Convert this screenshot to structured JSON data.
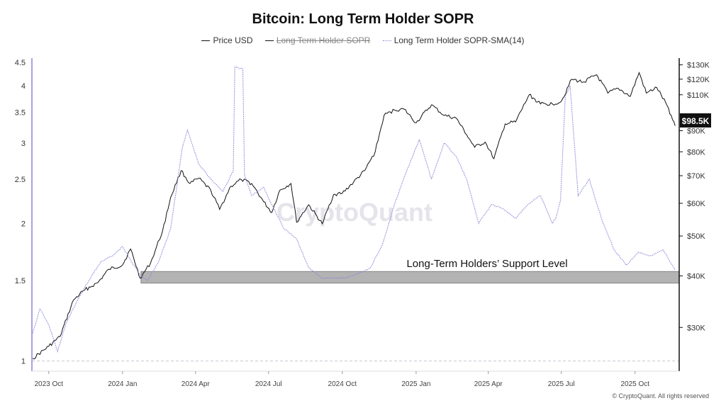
{
  "chart_data": {
    "type": "line",
    "title": "Bitcoin: Long Term Holder SOPR",
    "legend": {
      "position": "top-center",
      "entries": [
        {
          "label": "Price USD",
          "color": "#111111",
          "style": "solid",
          "hidden": false
        },
        {
          "label": "Long Term Holder SOPR",
          "color": "#111111",
          "style": "solid",
          "hidden": true
        },
        {
          "label": "Long Term Holder SOPR-SMA(14)",
          "color": "#8a86d8",
          "style": "dotted",
          "hidden": false
        }
      ]
    },
    "x_ticks": [
      "2023 Oct",
      "2024 Jan",
      "2024 Apr",
      "2024 Jul",
      "2024 Oct",
      "2025 Jan",
      "2025 Apr",
      "2025 Jul",
      "2025 Oct"
    ],
    "x_tick_dates": [
      "2023-10-01",
      "2024-01-01",
      "2024-04-01",
      "2024-07-01",
      "2024-10-01",
      "2025-01-01",
      "2025-04-01",
      "2025-07-01",
      "2025-10-01"
    ],
    "x_range": [
      "2023-09-10",
      "2025-11-25"
    ],
    "y_left": {
      "ticks": [
        1,
        1.5,
        2,
        2.5,
        3,
        3.5,
        4,
        4.5
      ],
      "range": [
        0.95,
        4.6
      ],
      "scale": "log"
    },
    "y_right": {
      "ticks": [
        30000,
        40000,
        50000,
        60000,
        70000,
        80000,
        90000,
        110000,
        120000,
        130000
      ],
      "tick_labels": [
        "$30K",
        "$40K",
        "$50K",
        "$60K",
        "$70K",
        "$80K",
        "$90K",
        "$110K",
        "$120K",
        "$130K"
      ],
      "range": [
        23500,
        135000
      ],
      "scale": "log"
    },
    "current_price_label": "$98.5K",
    "series": [
      {
        "name": "Price USD",
        "axis": "right",
        "color": "#111111",
        "x": [
          "2023-09-11",
          "2023-10-01",
          "2023-10-15",
          "2023-11-01",
          "2023-11-15",
          "2023-12-01",
          "2023-12-15",
          "2024-01-01",
          "2024-01-11",
          "2024-01-23",
          "2024-02-05",
          "2024-02-20",
          "2024-03-01",
          "2024-03-14",
          "2024-03-25",
          "2024-04-05",
          "2024-04-20",
          "2024-05-01",
          "2024-05-15",
          "2024-05-28",
          "2024-06-10",
          "2024-06-25",
          "2024-07-05",
          "2024-07-15",
          "2024-07-29",
          "2024-08-05",
          "2024-08-20",
          "2024-09-06",
          "2024-09-20",
          "2024-10-01",
          "2024-10-15",
          "2024-10-29",
          "2024-11-11",
          "2024-11-22",
          "2024-12-05",
          "2024-12-17",
          "2025-01-01",
          "2025-01-20",
          "2025-02-05",
          "2025-02-20",
          "2025-03-05",
          "2025-03-15",
          "2025-03-28",
          "2025-04-08",
          "2025-04-22",
          "2025-05-05",
          "2025-05-22",
          "2025-06-05",
          "2025-06-20",
          "2025-07-01",
          "2025-07-14",
          "2025-07-28",
          "2025-08-14",
          "2025-08-28",
          "2025-09-10",
          "2025-09-25",
          "2025-10-06",
          "2025-10-15",
          "2025-10-28",
          "2025-11-10",
          "2025-11-20"
        ],
        "values": [
          25200,
          27000,
          28500,
          35000,
          37000,
          38500,
          41500,
          42500,
          46500,
          39500,
          43000,
          51500,
          62000,
          72000,
          67000,
          69000,
          64500,
          58000,
          66000,
          68500,
          67000,
          60500,
          57000,
          64500,
          67000,
          54000,
          59500,
          53500,
          63000,
          63500,
          67500,
          72000,
          80000,
          98000,
          101000,
          101500,
          94000,
          104000,
          98000,
          96500,
          88000,
          82000,
          84500,
          77000,
          93500,
          94500,
          110000,
          104500,
          104500,
          106000,
          120000,
          118000,
          123000,
          111000,
          114000,
          109000,
          124500,
          111000,
          114500,
          103500,
          92500
        ]
      },
      {
        "name": "Long Term Holder SOPR-SMA(14)",
        "axis": "left",
        "color": "#8a86d8",
        "x": [
          "2023-09-11",
          "2023-09-20",
          "2023-10-01",
          "2023-10-12",
          "2023-10-22",
          "2023-11-05",
          "2023-11-20",
          "2023-12-05",
          "2023-12-20",
          "2024-01-01",
          "2024-01-12",
          "2024-01-22",
          "2024-02-01",
          "2024-02-15",
          "2024-03-01",
          "2024-03-10",
          "2024-03-15",
          "2024-03-22",
          "2024-04-05",
          "2024-04-20",
          "2024-05-05",
          "2024-05-18",
          "2024-05-20",
          "2024-05-30",
          "2024-06-01",
          "2024-06-10",
          "2024-06-25",
          "2024-07-05",
          "2024-07-20",
          "2024-08-05",
          "2024-08-20",
          "2024-09-05",
          "2024-09-20",
          "2024-10-05",
          "2024-10-20",
          "2024-11-05",
          "2024-11-20",
          "2024-12-05",
          "2024-12-20",
          "2025-01-05",
          "2025-01-20",
          "2025-02-05",
          "2025-02-20",
          "2025-03-05",
          "2025-03-20",
          "2025-04-05",
          "2025-04-20",
          "2025-05-05",
          "2025-05-20",
          "2025-06-05",
          "2025-06-20",
          "2025-06-24",
          "2025-06-30",
          "2025-07-06",
          "2025-07-12",
          "2025-07-22",
          "2025-08-05",
          "2025-08-20",
          "2025-09-05",
          "2025-09-20",
          "2025-10-05",
          "2025-10-20",
          "2025-11-05",
          "2025-11-20"
        ],
        "values": [
          1.15,
          1.3,
          1.2,
          1.05,
          1.2,
          1.35,
          1.5,
          1.65,
          1.7,
          1.78,
          1.65,
          1.55,
          1.5,
          1.65,
          1.95,
          2.5,
          2.9,
          3.2,
          2.7,
          2.5,
          2.35,
          2.6,
          4.4,
          4.35,
          2.55,
          2.3,
          2.4,
          2.2,
          1.95,
          1.85,
          1.6,
          1.52,
          1.52,
          1.52,
          1.55,
          1.6,
          1.8,
          2.2,
          2.6,
          3.05,
          2.5,
          3.0,
          2.8,
          2.5,
          2.0,
          2.2,
          2.15,
          2.05,
          2.2,
          2.3,
          2.0,
          2.05,
          2.25,
          3.8,
          4.0,
          2.3,
          2.5,
          2.05,
          1.75,
          1.62,
          1.73,
          1.7,
          1.75,
          1.58
        ]
      }
    ],
    "annotation": {
      "text": "Long-Term Holders’ Support Level",
      "y_from": 1.48,
      "y_to": 1.57,
      "x_from": "2024-01-24"
    },
    "watermark": "CryptoQuant",
    "grid": false
  },
  "footer": {
    "copyright": "© CryptoQuant. All rights reserved"
  }
}
